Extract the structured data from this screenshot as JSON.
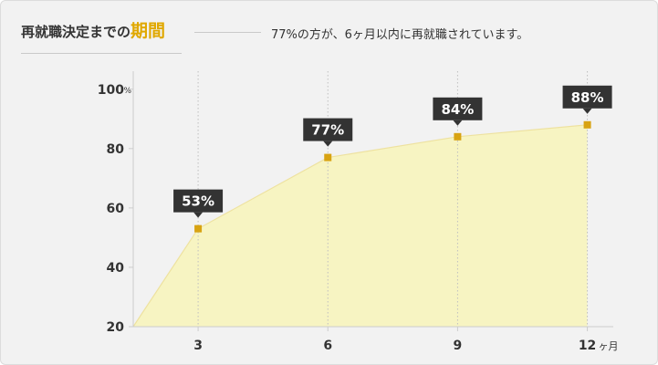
{
  "header": {
    "title_main": "再就職決定までの",
    "title_highlight": "期間",
    "summary": "77%の方が、6ヶ月以内に再就職されています。"
  },
  "chart_data": {
    "type": "area",
    "x": [
      3,
      6,
      9,
      12
    ],
    "values": [
      53,
      77,
      84,
      88
    ],
    "data_labels": [
      "53%",
      "77%",
      "84%",
      "88%"
    ],
    "x_tick_labels": [
      "3",
      "6",
      "9",
      "12"
    ],
    "x_unit": "ヶ月",
    "y_ticks": [
      20,
      40,
      60,
      80,
      100
    ],
    "y_unit": "%",
    "xlim": [
      1.5,
      12.6
    ],
    "ylim": [
      20,
      103
    ],
    "start_point": {
      "x": 1.5,
      "y": 20
    },
    "colors": {
      "fill": "#f7f4c2",
      "line": "#eee2a0",
      "marker": "#d8a312",
      "label_bg": "#333333",
      "label_text": "#ffffff",
      "grid": "#bfbfbf",
      "axis": "#cccccc",
      "tick_text": "#333333"
    }
  }
}
